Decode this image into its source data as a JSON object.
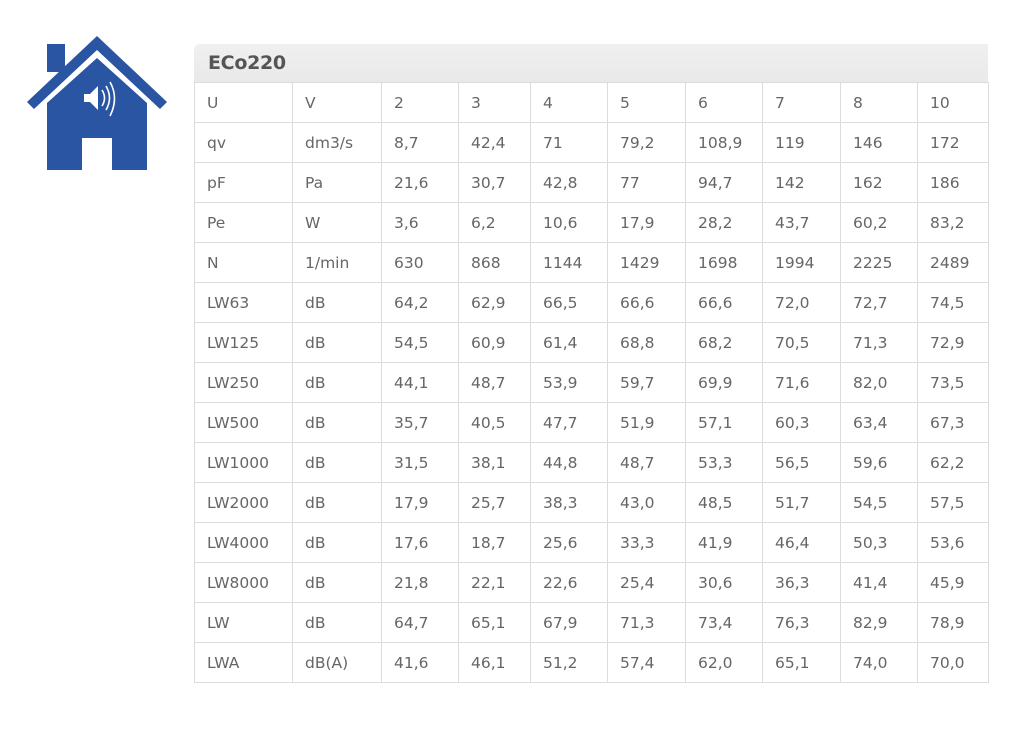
{
  "logo": {
    "icon": "house-speaker-icon",
    "color": "#2a55a2"
  },
  "table": {
    "title": "ECo220",
    "rows": [
      [
        "U",
        "V",
        "2",
        "3",
        "4",
        "5",
        "6",
        "7",
        "8",
        "10"
      ],
      [
        "qv",
        "dm3/s",
        "8,7",
        "42,4",
        "71",
        "79,2",
        "108,9",
        "119",
        "146",
        "172"
      ],
      [
        "pF",
        "Pa",
        "21,6",
        "30,7",
        "42,8",
        "77",
        "94,7",
        "142",
        "162",
        "186"
      ],
      [
        "Pe",
        "W",
        "3,6",
        "6,2",
        "10,6",
        "17,9",
        "28,2",
        "43,7",
        "60,2",
        "83,2"
      ],
      [
        "N",
        "1/min",
        "630",
        "868",
        "1144",
        "1429",
        "1698",
        "1994",
        "2225",
        "2489"
      ],
      [
        "LW63",
        "dB",
        "64,2",
        "62,9",
        "66,5",
        "66,6",
        "66,6",
        "72,0",
        "72,7",
        "74,5"
      ],
      [
        "LW125",
        "dB",
        "54,5",
        "60,9",
        "61,4",
        "68,8",
        "68,2",
        "70,5",
        "71,3",
        "72,9"
      ],
      [
        "LW250",
        "dB",
        "44,1",
        "48,7",
        "53,9",
        "59,7",
        "69,9",
        "71,6",
        "82,0",
        "73,5"
      ],
      [
        "LW500",
        "dB",
        "35,7",
        "40,5",
        "47,7",
        "51,9",
        "57,1",
        "60,3",
        "63,4",
        "67,3"
      ],
      [
        "LW1000",
        "dB",
        "31,5",
        "38,1",
        "44,8",
        "48,7",
        "53,3",
        "56,5",
        "59,6",
        "62,2"
      ],
      [
        "LW2000",
        "dB",
        "17,9",
        "25,7",
        "38,3",
        "43,0",
        "48,5",
        "51,7",
        "54,5",
        "57,5"
      ],
      [
        "LW4000",
        "dB",
        "17,6",
        "18,7",
        "25,6",
        "33,3",
        "41,9",
        "46,4",
        "50,3",
        "53,6"
      ],
      [
        "LW8000",
        "dB",
        "21,8",
        "22,1",
        "22,6",
        "25,4",
        "30,6",
        "36,3",
        "41,4",
        "45,9"
      ],
      [
        "LW",
        "dB",
        "64,7",
        "65,1",
        "67,9",
        "71,3",
        "73,4",
        "76,3",
        "82,9",
        "78,9"
      ],
      [
        "LWA",
        "dB(A)",
        "41,6",
        "46,1",
        "51,2",
        "57,4",
        "62,0",
        "65,1",
        "74,0",
        "70,0"
      ]
    ]
  }
}
